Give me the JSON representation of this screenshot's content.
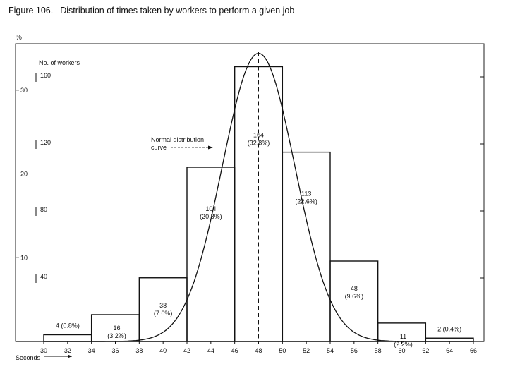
{
  "figure": {
    "number": "Figure 106.",
    "title": "Distribution of times taken by workers to perform a given job"
  },
  "chart_data": {
    "type": "bar",
    "title": "Distribution of times taken by workers to perform a given job",
    "xlabel": "Seconds",
    "ylabel_left": "No. of workers",
    "ylabel_percent": "%",
    "xlim": [
      30,
      66
    ],
    "ylim": [
      0,
      176
    ],
    "x_ticks": [
      30,
      32,
      34,
      36,
      38,
      40,
      42,
      44,
      46,
      48,
      50,
      52,
      54,
      56,
      58,
      60,
      62,
      64,
      66
    ],
    "y_ticks_workers": [
      40,
      80,
      120,
      160
    ],
    "y_ticks_percent": [
      10,
      20,
      30
    ],
    "grid": false,
    "bins": [
      {
        "from": 30,
        "to": 34,
        "value": 4,
        "label": "4 (0.8%)",
        "count": "4",
        "pct": "(0.8%)"
      },
      {
        "from": 34,
        "to": 38,
        "value": 16,
        "label": "16 (3.2%)",
        "count": "16",
        "pct": "(3.2%)"
      },
      {
        "from": 38,
        "to": 42,
        "value": 38,
        "label": "38 (7.6%)",
        "count": "38",
        "pct": "(7.6%)"
      },
      {
        "from": 42,
        "to": 46,
        "value": 104,
        "label": "104 (20.8%)",
        "count": "104",
        "pct": "(20.8%)"
      },
      {
        "from": 46,
        "to": 50,
        "value": 164,
        "label": "164 (32.8%)",
        "count": "164",
        "pct": "(32.8%)"
      },
      {
        "from": 50,
        "to": 54,
        "value": 113,
        "label": "113 (22.6%)",
        "count": "113",
        "pct": "(22.6%)"
      },
      {
        "from": 54,
        "to": 58,
        "value": 48,
        "label": "48 (9.6%)",
        "count": "48",
        "pct": "(9.6%)"
      },
      {
        "from": 58,
        "to": 62,
        "value": 11,
        "label": "11 (2.2%)",
        "count": "11",
        "pct": "(2.2%)"
      },
      {
        "from": 62,
        "to": 66,
        "value": 2,
        "label": "2 (0.4%)",
        "count": "2",
        "pct": "(0.4%)"
      }
    ],
    "mean_line_x": 48,
    "curve": {
      "name": "Normal distribution curve",
      "label_lines": [
        "Normal distribution",
        "curve"
      ],
      "mean": 48,
      "sd": 3.05,
      "peak": 172
    }
  }
}
